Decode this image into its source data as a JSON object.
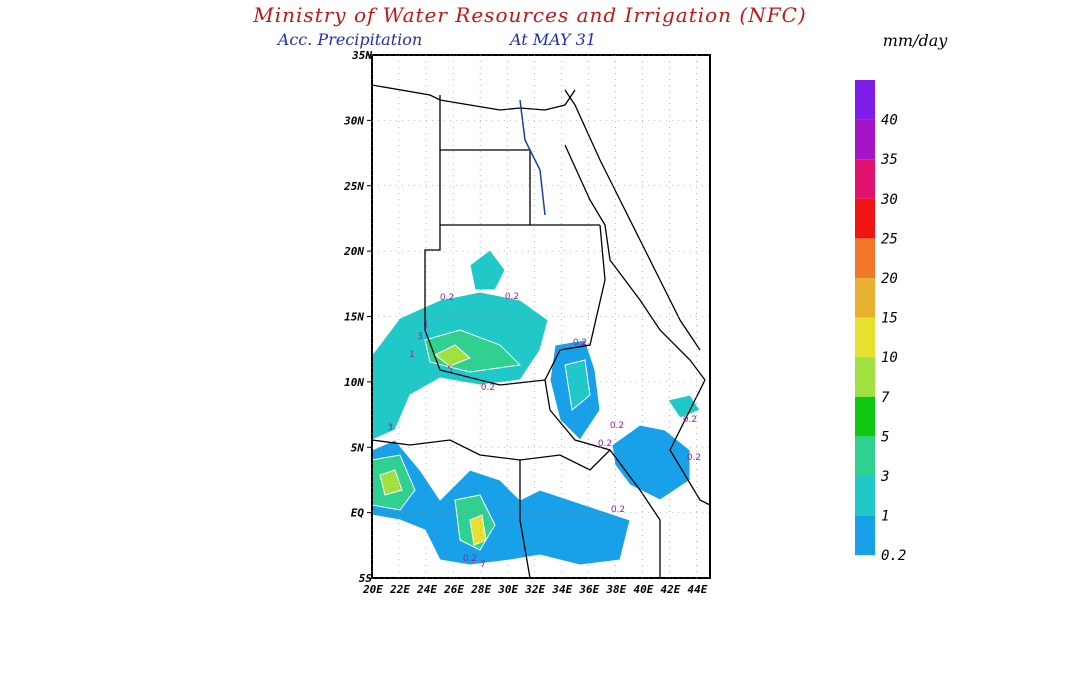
{
  "header": {
    "title": "Ministry of Water Resources and Irrigation (NFC)",
    "subtitle": "Acc. Precipitation",
    "date": "At MAY 31",
    "units": "mm/day"
  },
  "map": {
    "lat_labels": [
      "35N",
      "30N",
      "25N",
      "20N",
      "15N",
      "10N",
      "5N",
      "EQ",
      "5S"
    ],
    "lon_labels": [
      "20E",
      "22E",
      "24E",
      "26E",
      "28E",
      "30E",
      "32E",
      "34E",
      "36E",
      "38E",
      "40E",
      "42E",
      "44E"
    ],
    "contour_labels": [
      "0.2",
      "0.2",
      "1",
      "3",
      "5",
      "1",
      "0.2",
      "0.2",
      "0.2",
      "0.2",
      "0.2",
      "3",
      "0.2",
      "0.2",
      "7",
      "0.2"
    ]
  },
  "colorbar": [
    {
      "label": null,
      "color": "#7d1ee8"
    },
    {
      "label": "40",
      "color": "#a415c8"
    },
    {
      "label": "35",
      "color": "#e0126e"
    },
    {
      "label": "30",
      "color": "#f01414"
    },
    {
      "label": "25",
      "color": "#f07828"
    },
    {
      "label": "20",
      "color": "#e8b030"
    },
    {
      "label": "15",
      "color": "#e8e030"
    },
    {
      "label": "10",
      "color": "#a0e040"
    },
    {
      "label": "7",
      "color": "#10c810"
    },
    {
      "label": "5",
      "color": "#30d090"
    },
    {
      "label": "3",
      "color": "#20c8c8"
    },
    {
      "label": "1",
      "color": "#18a0e8"
    },
    {
      "label": "0.2",
      "color": null
    }
  ]
}
